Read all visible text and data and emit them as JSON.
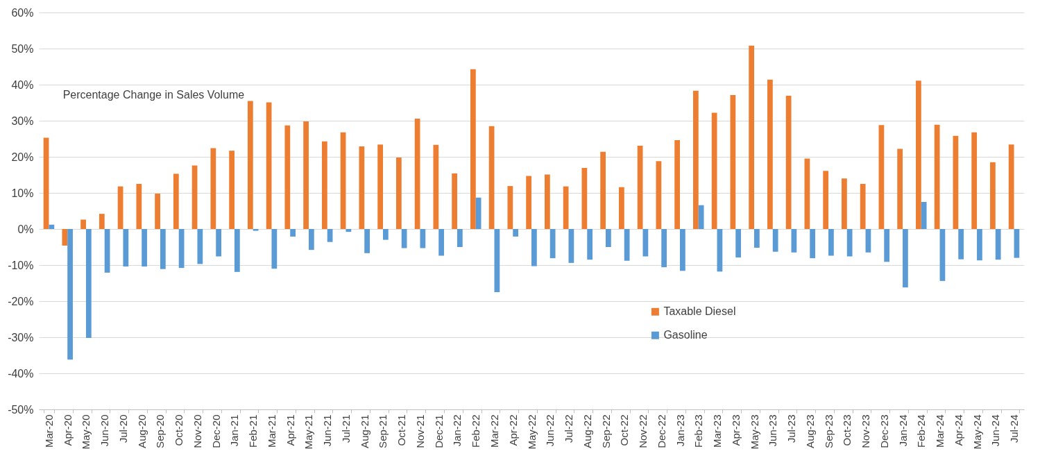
{
  "chart_data": {
    "type": "bar",
    "title": "Percentage Change in Sales Volume",
    "categories": [
      "Mar-20",
      "Apr-20",
      "May-20",
      "Jun-20",
      "Jul-20",
      "Aug-20",
      "Sep-20",
      "Oct-20",
      "Nov-20",
      "Dec-20",
      "Jan-21",
      "Feb-21",
      "Mar-21",
      "Apr-21",
      "May-21",
      "Jun-21",
      "Jul-21",
      "Aug-21",
      "Sep-21",
      "Oct-21",
      "Nov-21",
      "Dec-21",
      "Jan-22",
      "Feb-22",
      "Mar-22",
      "Apr-22",
      "May-22",
      "Jun-22",
      "Jul-22",
      "Aug-22",
      "Sep-22",
      "Oct-22",
      "Nov-22",
      "Dec-22",
      "Jan-23",
      "Feb-23",
      "Mar-23",
      "Apr-23",
      "May-23",
      "Jun-23",
      "Jul-23",
      "Aug-23",
      "Sep-23",
      "Oct-23",
      "Nov-23",
      "Dec-23",
      "Jan-24",
      "Feb-24",
      "Mar-24",
      "Apr-24",
      "May-24",
      "Jun-24",
      "Jul-24"
    ],
    "series": [
      {
        "name": "Taxable Diesel",
        "color": "#ed7d31",
        "values": [
          25.3,
          -4.6,
          2.6,
          4.2,
          11.8,
          12.5,
          9.8,
          15.3,
          17.6,
          22.4,
          21.7,
          35.5,
          35.1,
          28.7,
          29.8,
          24.3,
          26.8,
          22.9,
          23.4,
          19.8,
          30.6,
          23.3,
          15.4,
          44.3,
          28.5,
          11.9,
          14.7,
          15.1,
          11.8,
          16.9,
          21.4,
          11.6,
          23.1,
          18.8,
          24.6,
          38.3,
          32.2,
          37.1,
          50.8,
          41.4,
          36.9,
          19.5,
          16.1,
          14.0,
          12.5,
          28.8,
          22.2,
          41.1,
          28.9,
          25.8,
          26.8,
          18.5,
          23.4
        ]
      },
      {
        "name": "Gasoline",
        "color": "#5b9bd5",
        "values": [
          1.2,
          -36.2,
          -30.2,
          -12.1,
          -10.4,
          -10.4,
          -11.1,
          -10.8,
          -9.7,
          -7.6,
          -11.9,
          -0.5,
          -11.0,
          -2.1,
          -5.8,
          -3.6,
          -0.8,
          -6.7,
          -3.0,
          -5.3,
          -5.3,
          -7.4,
          -5.0,
          8.7,
          -17.5,
          -2.1,
          -10.3,
          -8.1,
          -9.4,
          -8.5,
          -5.0,
          -8.8,
          -7.6,
          -10.6,
          -11.6,
          6.6,
          -11.8,
          -7.9,
          -5.2,
          -6.3,
          -6.5,
          -8.1,
          -7.4,
          -7.6,
          -6.5,
          -9.1,
          -16.2,
          7.5,
          -14.4,
          -8.4,
          -8.7,
          -8.5,
          -8.0
        ]
      }
    ],
    "ylim": [
      -50,
      60
    ],
    "yticks": [
      {
        "value": -50,
        "label": "-50%"
      },
      {
        "value": -40,
        "label": "-40%"
      },
      {
        "value": -30,
        "label": "-30%"
      },
      {
        "value": -20,
        "label": "-20%"
      },
      {
        "value": -10,
        "label": "-10%"
      },
      {
        "value": 0,
        "label": "0%"
      },
      {
        "value": 10,
        "label": "10%"
      },
      {
        "value": 20,
        "label": "20%"
      },
      {
        "value": 30,
        "label": "30%"
      },
      {
        "value": 40,
        "label": "40%"
      },
      {
        "value": 50,
        "label": "50%"
      },
      {
        "value": 60,
        "label": "60%"
      }
    ],
    "grid": "y",
    "legend": "bottom right"
  }
}
